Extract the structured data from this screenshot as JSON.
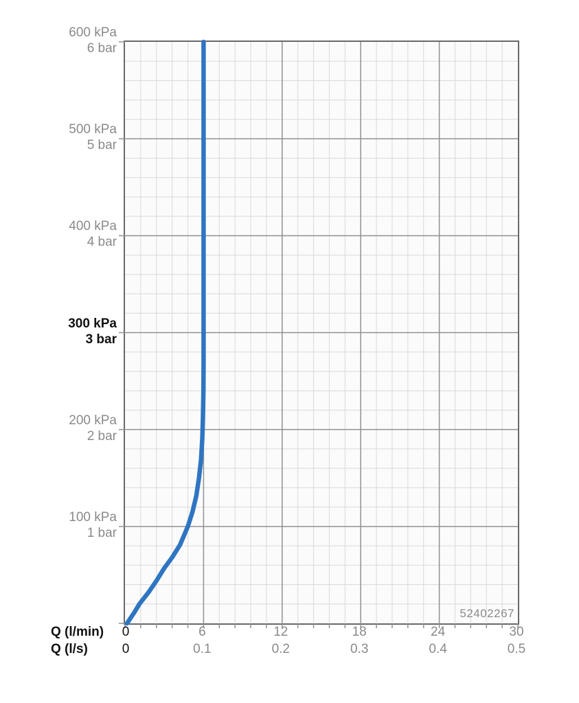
{
  "chart_data": {
    "type": "line",
    "title": "",
    "product_code": "52402267",
    "x_axis": {
      "row1_label": "Q (l/min)",
      "row2_label": "Q (l/s)",
      "min": 0,
      "max": 30,
      "major_step": 6,
      "minor_per_major": 5,
      "ticks_lmin": [
        "0",
        "6",
        "12",
        "18",
        "24",
        "30"
      ],
      "ticks_ls": [
        "0",
        "0.1",
        "0.2",
        "0.3",
        "0.4",
        "0.5"
      ]
    },
    "y_axis": {
      "min": 0,
      "max": 600,
      "major_step": 100,
      "minor_per_major": 5,
      "grid_on": true,
      "labels": [
        {
          "value": 600,
          "kpa": "600 kPa",
          "bar": "6 bar",
          "bold": false
        },
        {
          "value": 500,
          "kpa": "500 kPa",
          "bar": "5 bar",
          "bold": false
        },
        {
          "value": 400,
          "kpa": "400 kPa",
          "bar": "4 bar",
          "bold": false
        },
        {
          "value": 300,
          "kpa": "300 kPa",
          "bar": "3 bar",
          "bold": true
        },
        {
          "value": 200,
          "kpa": "200 kPa",
          "bar": "2 bar",
          "bold": false
        },
        {
          "value": 100,
          "kpa": "100 kPa",
          "bar": "1 bar",
          "bold": false
        }
      ]
    },
    "series": [
      {
        "name": "pressure-flow-curve",
        "color": "#2e75c2",
        "stroke_width": 6.5,
        "points_lmin_kpa": [
          [
            0.15,
            0
          ],
          [
            0.45,
            6
          ],
          [
            0.7,
            11
          ],
          [
            1.1,
            20
          ],
          [
            1.8,
            32
          ],
          [
            2.4,
            44
          ],
          [
            3.0,
            57
          ],
          [
            3.6,
            68
          ],
          [
            4.2,
            81
          ],
          [
            4.8,
            100
          ],
          [
            5.15,
            115
          ],
          [
            5.45,
            132
          ],
          [
            5.65,
            150
          ],
          [
            5.8,
            168
          ],
          [
            5.9,
            190
          ],
          [
            5.95,
            210
          ],
          [
            5.99,
            240
          ],
          [
            6.0,
            270
          ],
          [
            6.0,
            600
          ]
        ]
      }
    ],
    "colors": {
      "curve_blue": "#2e75c2",
      "grid_minor": "#d9d9d9",
      "grid_major": "#909090",
      "axis_border": "#686868",
      "label_gray": "#8a8a8a",
      "label_black": "#111111",
      "plot_background": "#fbfbfb"
    },
    "legend": {
      "visible": false
    }
  }
}
